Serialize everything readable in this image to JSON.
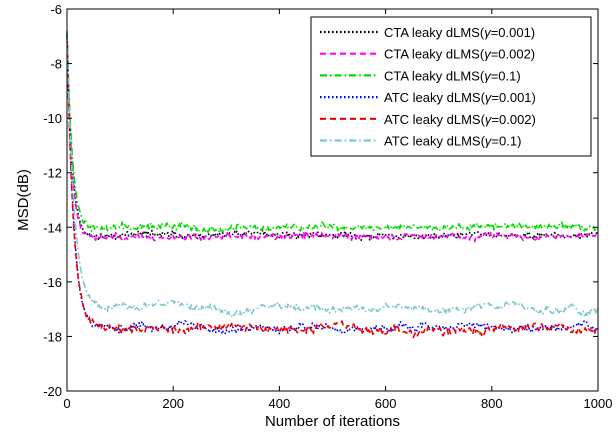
{
  "chart_data": {
    "type": "line",
    "title": "",
    "xlabel": "Number of iterations",
    "ylabel": "MSD(dB)",
    "xlim": [
      0,
      1000
    ],
    "ylim": [
      -20,
      -6
    ],
    "xticks": [
      "0",
      "200",
      "400",
      "600",
      "800",
      "1000"
    ],
    "yticks": [
      "-20",
      "-18",
      "-16",
      "-14",
      "-12",
      "-10",
      "-8",
      "-6"
    ],
    "grid": false,
    "legend_position": "top-right",
    "series": [
      {
        "name": "CTA leaky dLMS(γ=0.001)",
        "name_parts": [
          "CTA leaky dLMS(",
          "γ",
          "=0.001)"
        ],
        "color": "#000000",
        "style": "dotted",
        "start": -6.9,
        "tau": 9.5,
        "steady": -14.3,
        "noise": 0.16,
        "wander": 0.06,
        "seed": 11,
        "x": [
          0,
          20,
          40,
          60,
          100,
          200,
          400,
          600,
          800,
          1000
        ],
        "y": [
          -6.9,
          -11.6,
          -13.5,
          -14.2,
          -14.3,
          -14.3,
          -14.3,
          -14.3,
          -14.3,
          -14.3
        ]
      },
      {
        "name": "CTA leaky dLMS(γ=0.002)",
        "name_parts": [
          "CTA leaky dLMS(",
          "γ",
          "=0.002)"
        ],
        "color": "#ff00ff",
        "style": "dashed",
        "start": -6.9,
        "tau": 9.0,
        "steady": -14.35,
        "noise": 0.15,
        "wander": 0.05,
        "seed": 23,
        "x": [
          0,
          20,
          40,
          60,
          100,
          200,
          400,
          600,
          800,
          1000
        ],
        "y": [
          -6.9,
          -11.8,
          -13.7,
          -14.3,
          -14.35,
          -14.35,
          -14.35,
          -14.35,
          -14.35,
          -14.35
        ]
      },
      {
        "name": "CTA leaky dLMS(γ=0.1)",
        "name_parts": [
          "CTA leaky dLMS(",
          "γ",
          "=0.1)"
        ],
        "color": "#00dd00",
        "style": "dashdot",
        "start": -6.8,
        "tau": 10.0,
        "steady": -14.0,
        "noise": 0.17,
        "wander": 0.06,
        "seed": 37,
        "x": [
          0,
          20,
          40,
          60,
          100,
          200,
          400,
          600,
          800,
          1000
        ],
        "y": [
          -6.8,
          -11.3,
          -13.1,
          -13.8,
          -14.0,
          -14.0,
          -14.0,
          -14.0,
          -14.0,
          -14.0
        ]
      },
      {
        "name": "ATC leaky dLMS(γ=0.001)",
        "name_parts": [
          "ATC leaky dLMS(",
          "γ",
          "=0.001)"
        ],
        "color": "#0000ee",
        "style": "dotted",
        "start": -6.9,
        "tau": 12.5,
        "steady": -17.7,
        "noise": 0.16,
        "wander": 0.12,
        "seed": 53,
        "x": [
          0,
          20,
          40,
          60,
          100,
          200,
          400,
          600,
          800,
          1000
        ],
        "y": [
          -6.9,
          -13.5,
          -16.3,
          -17.4,
          -17.7,
          -17.7,
          -17.7,
          -17.7,
          -17.7,
          -17.7
        ]
      },
      {
        "name": "ATC leaky dLMS(γ=0.002)",
        "name_parts": [
          "ATC leaky dLMS(",
          "γ",
          "=0.002)"
        ],
        "color": "#ee0000",
        "style": "dashed",
        "start": -6.9,
        "tau": 12.0,
        "steady": -17.75,
        "noise": 0.17,
        "wander": 0.12,
        "seed": 71,
        "x": [
          0,
          20,
          40,
          60,
          100,
          200,
          400,
          600,
          800,
          1000
        ],
        "y": [
          -6.9,
          -13.6,
          -16.4,
          -17.5,
          -17.75,
          -17.75,
          -17.75,
          -17.75,
          -17.75,
          -17.75
        ]
      },
      {
        "name": "ATC leaky dLMS(γ=0.1)",
        "name_parts": [
          "ATC leaky dLMS(",
          "γ",
          "=0.1)"
        ],
        "color": "#7fc8cc",
        "style": "dashdot",
        "start": -6.9,
        "tau": 13.5,
        "steady": -17.0,
        "noise": 0.14,
        "wander": 0.13,
        "seed": 97,
        "x": [
          0,
          20,
          40,
          60,
          100,
          200,
          400,
          600,
          800,
          1000
        ],
        "y": [
          -6.9,
          -13.2,
          -15.7,
          -16.7,
          -17.0,
          -17.0,
          -17.0,
          -17.0,
          -17.0,
          -17.0
        ]
      }
    ]
  }
}
